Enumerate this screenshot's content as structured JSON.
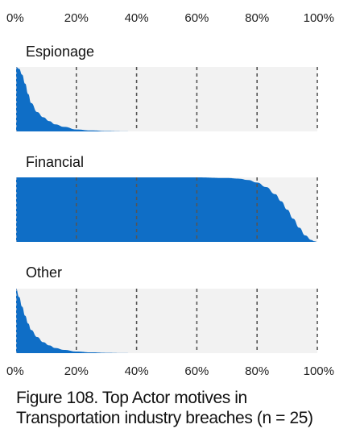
{
  "caption": "Figure 108. Top Actor motives in Transportation industry breaches (n = 25)",
  "chart_data": {
    "type": "area",
    "subtype": "density / slab plot",
    "x_tick_labels": [
      "0%",
      "20%",
      "40%",
      "60%",
      "80%",
      "100%"
    ],
    "xlim": [
      0,
      1
    ],
    "grid": "dashed vertical at 20% intervals",
    "colors": {
      "fill": "#0f6ec6",
      "background_band": "#f2f2f2",
      "grid": "#555555"
    },
    "series": [
      {
        "name": "Espionage",
        "x": [
          0,
          0.01,
          0.02,
          0.03,
          0.04,
          0.05,
          0.07,
          0.09,
          0.11,
          0.13,
          0.16,
          0.2,
          0.25,
          0.3,
          0.35,
          0.4
        ],
        "y": [
          1,
          0.97,
          0.88,
          0.74,
          0.58,
          0.44,
          0.3,
          0.22,
          0.16,
          0.11,
          0.07,
          0.03,
          0.015,
          0.006,
          0.002,
          0
        ]
      },
      {
        "name": "Financial",
        "x": [
          0,
          0.6,
          0.7,
          0.74,
          0.77,
          0.8,
          0.83,
          0.86,
          0.88,
          0.9,
          0.92,
          0.94,
          0.96,
          0.98,
          0.99,
          1.0
        ],
        "y": [
          1,
          1,
          0.99,
          0.98,
          0.96,
          0.92,
          0.85,
          0.74,
          0.63,
          0.5,
          0.36,
          0.22,
          0.1,
          0.03,
          0.01,
          0
        ]
      },
      {
        "name": "Other",
        "x": [
          0,
          0.01,
          0.02,
          0.03,
          0.04,
          0.05,
          0.07,
          0.09,
          0.11,
          0.13,
          0.16,
          0.2,
          0.25,
          0.3,
          0.35,
          0.4
        ],
        "y": [
          1,
          0.87,
          0.72,
          0.58,
          0.46,
          0.36,
          0.25,
          0.17,
          0.12,
          0.08,
          0.05,
          0.025,
          0.012,
          0.005,
          0.002,
          0
        ]
      }
    ]
  }
}
